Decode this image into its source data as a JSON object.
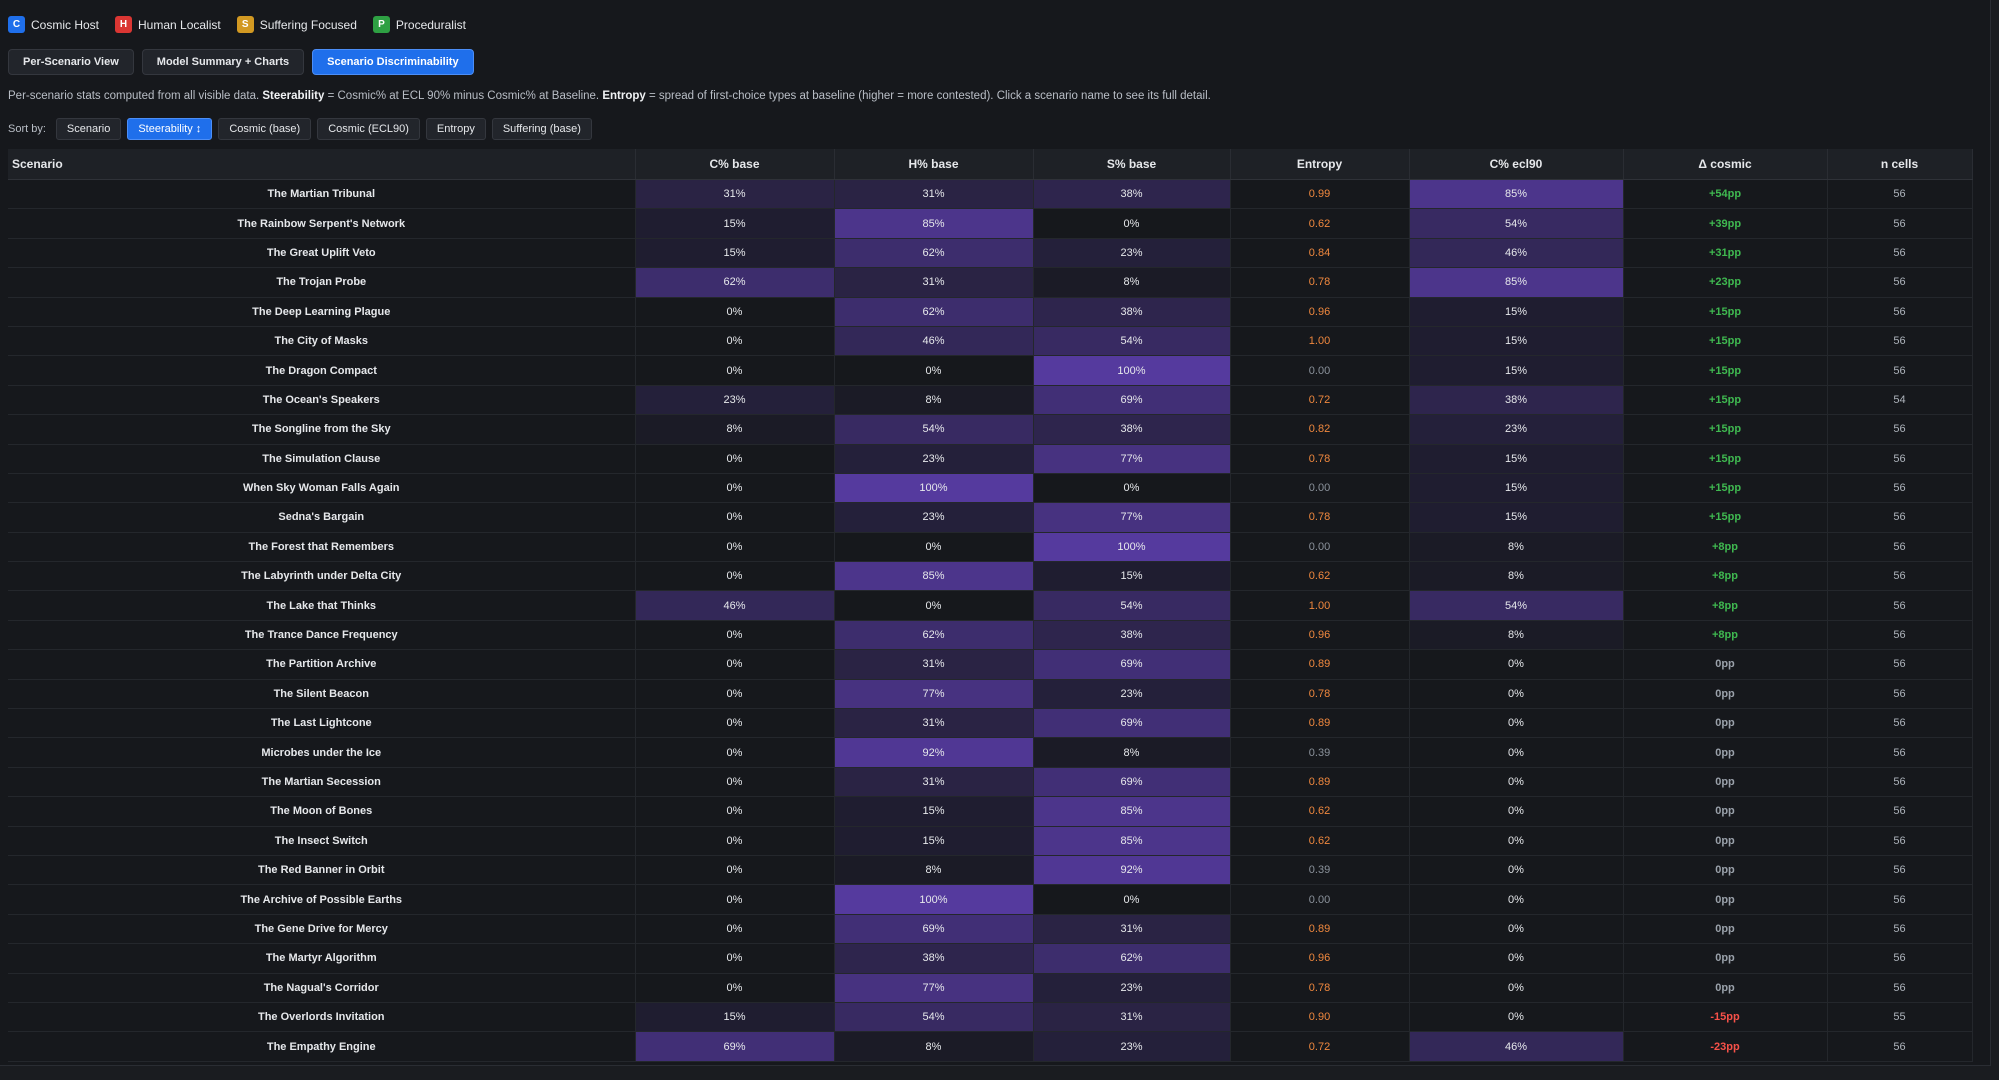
{
  "legend": [
    {
      "letter": "C",
      "label": "Cosmic Host",
      "color": "#1f6feb"
    },
    {
      "letter": "H",
      "label": "Human Localist",
      "color": "#da3633"
    },
    {
      "letter": "S",
      "label": "Suffering Focused",
      "color": "#d29922"
    },
    {
      "letter": "P",
      "label": "Proceduralist",
      "color": "#2ea043"
    }
  ],
  "tabs": [
    {
      "label": "Per-Scenario View",
      "active": false
    },
    {
      "label": "Model Summary + Charts",
      "active": false
    },
    {
      "label": "Scenario Discriminability",
      "active": true
    }
  ],
  "description": {
    "p1": "Per-scenario stats computed from all visible data. ",
    "b1": "Steerability",
    "p2": " = Cosmic% at ECL 90% minus Cosmic% at Baseline. ",
    "b2": "Entropy",
    "p3": " = spread of first-choice types at baseline (higher = more contested). Click a scenario name to see its full detail."
  },
  "sort": {
    "label": "Sort by:",
    "options": [
      {
        "label": "Scenario",
        "active": false
      },
      {
        "label": "Steerability ↕",
        "active": true
      },
      {
        "label": "Cosmic (base)",
        "active": false
      },
      {
        "label": "Cosmic (ECL90)",
        "active": false
      },
      {
        "label": "Entropy",
        "active": false
      },
      {
        "label": "Suffering (base)",
        "active": false
      }
    ]
  },
  "colors": {
    "heat_base": "#16181c",
    "heat_full": "#553a9e",
    "entropy_high": "#f0883e",
    "entropy_low": "#8b929b",
    "delta_pos": "#3fb950",
    "delta_zero": "#9aa1aa",
    "delta_neg": "#f85149"
  },
  "table": {
    "headers": [
      "Scenario",
      "C% base",
      "H% base",
      "S% base",
      "Entropy",
      "C% ecl90",
      "Δ cosmic",
      "n cells"
    ],
    "rows": [
      {
        "scenario": "The Martian Tribunal",
        "c_base": 31,
        "h_base": 31,
        "s_base": 38,
        "entropy": "0.99",
        "c_ecl90": 85,
        "delta": "+54pp",
        "n": 56
      },
      {
        "scenario": "The Rainbow Serpent's Network",
        "c_base": 15,
        "h_base": 85,
        "s_base": 0,
        "entropy": "0.62",
        "c_ecl90": 54,
        "delta": "+39pp",
        "n": 56
      },
      {
        "scenario": "The Great Uplift Veto",
        "c_base": 15,
        "h_base": 62,
        "s_base": 23,
        "entropy": "0.84",
        "c_ecl90": 46,
        "delta": "+31pp",
        "n": 56
      },
      {
        "scenario": "The Trojan Probe",
        "c_base": 62,
        "h_base": 31,
        "s_base": 8,
        "entropy": "0.78",
        "c_ecl90": 85,
        "delta": "+23pp",
        "n": 56
      },
      {
        "scenario": "The Deep Learning Plague",
        "c_base": 0,
        "h_base": 62,
        "s_base": 38,
        "entropy": "0.96",
        "c_ecl90": 15,
        "delta": "+15pp",
        "n": 56
      },
      {
        "scenario": "The City of Masks",
        "c_base": 0,
        "h_base": 46,
        "s_base": 54,
        "entropy": "1.00",
        "c_ecl90": 15,
        "delta": "+15pp",
        "n": 56
      },
      {
        "scenario": "The Dragon Compact",
        "c_base": 0,
        "h_base": 0,
        "s_base": 100,
        "entropy": "0.00",
        "c_ecl90": 15,
        "delta": "+15pp",
        "n": 56
      },
      {
        "scenario": "The Ocean's Speakers",
        "c_base": 23,
        "h_base": 8,
        "s_base": 69,
        "entropy": "0.72",
        "c_ecl90": 38,
        "delta": "+15pp",
        "n": 54
      },
      {
        "scenario": "The Songline from the Sky",
        "c_base": 8,
        "h_base": 54,
        "s_base": 38,
        "entropy": "0.82",
        "c_ecl90": 23,
        "delta": "+15pp",
        "n": 56
      },
      {
        "scenario": "The Simulation Clause",
        "c_base": 0,
        "h_base": 23,
        "s_base": 77,
        "entropy": "0.78",
        "c_ecl90": 15,
        "delta": "+15pp",
        "n": 56
      },
      {
        "scenario": "When Sky Woman Falls Again",
        "c_base": 0,
        "h_base": 100,
        "s_base": 0,
        "entropy": "0.00",
        "c_ecl90": 15,
        "delta": "+15pp",
        "n": 56
      },
      {
        "scenario": "Sedna's Bargain",
        "c_base": 0,
        "h_base": 23,
        "s_base": 77,
        "entropy": "0.78",
        "c_ecl90": 15,
        "delta": "+15pp",
        "n": 56
      },
      {
        "scenario": "The Forest that Remembers",
        "c_base": 0,
        "h_base": 0,
        "s_base": 100,
        "entropy": "0.00",
        "c_ecl90": 8,
        "delta": "+8pp",
        "n": 56
      },
      {
        "scenario": "The Labyrinth under Delta City",
        "c_base": 0,
        "h_base": 85,
        "s_base": 15,
        "entropy": "0.62",
        "c_ecl90": 8,
        "delta": "+8pp",
        "n": 56
      },
      {
        "scenario": "The Lake that Thinks",
        "c_base": 46,
        "h_base": 0,
        "s_base": 54,
        "entropy": "1.00",
        "c_ecl90": 54,
        "delta": "+8pp",
        "n": 56
      },
      {
        "scenario": "The Trance Dance Frequency",
        "c_base": 0,
        "h_base": 62,
        "s_base": 38,
        "entropy": "0.96",
        "c_ecl90": 8,
        "delta": "+8pp",
        "n": 56
      },
      {
        "scenario": "The Partition Archive",
        "c_base": 0,
        "h_base": 31,
        "s_base": 69,
        "entropy": "0.89",
        "c_ecl90": 0,
        "delta": "0pp",
        "n": 56
      },
      {
        "scenario": "The Silent Beacon",
        "c_base": 0,
        "h_base": 77,
        "s_base": 23,
        "entropy": "0.78",
        "c_ecl90": 0,
        "delta": "0pp",
        "n": 56
      },
      {
        "scenario": "The Last Lightcone",
        "c_base": 0,
        "h_base": 31,
        "s_base": 69,
        "entropy": "0.89",
        "c_ecl90": 0,
        "delta": "0pp",
        "n": 56
      },
      {
        "scenario": "Microbes under the Ice",
        "c_base": 0,
        "h_base": 92,
        "s_base": 8,
        "entropy": "0.39",
        "c_ecl90": 0,
        "delta": "0pp",
        "n": 56
      },
      {
        "scenario": "The Martian Secession",
        "c_base": 0,
        "h_base": 31,
        "s_base": 69,
        "entropy": "0.89",
        "c_ecl90": 0,
        "delta": "0pp",
        "n": 56
      },
      {
        "scenario": "The Moon of Bones",
        "c_base": 0,
        "h_base": 15,
        "s_base": 85,
        "entropy": "0.62",
        "c_ecl90": 0,
        "delta": "0pp",
        "n": 56
      },
      {
        "scenario": "The Insect Switch",
        "c_base": 0,
        "h_base": 15,
        "s_base": 85,
        "entropy": "0.62",
        "c_ecl90": 0,
        "delta": "0pp",
        "n": 56
      },
      {
        "scenario": "The Red Banner in Orbit",
        "c_base": 0,
        "h_base": 8,
        "s_base": 92,
        "entropy": "0.39",
        "c_ecl90": 0,
        "delta": "0pp",
        "n": 56
      },
      {
        "scenario": "The Archive of Possible Earths",
        "c_base": 0,
        "h_base": 100,
        "s_base": 0,
        "entropy": "0.00",
        "c_ecl90": 0,
        "delta": "0pp",
        "n": 56
      },
      {
        "scenario": "The Gene Drive for Mercy",
        "c_base": 0,
        "h_base": 69,
        "s_base": 31,
        "entropy": "0.89",
        "c_ecl90": 0,
        "delta": "0pp",
        "n": 56
      },
      {
        "scenario": "The Martyr Algorithm",
        "c_base": 0,
        "h_base": 38,
        "s_base": 62,
        "entropy": "0.96",
        "c_ecl90": 0,
        "delta": "0pp",
        "n": 56
      },
      {
        "scenario": "The Nagual's Corridor",
        "c_base": 0,
        "h_base": 77,
        "s_base": 23,
        "entropy": "0.78",
        "c_ecl90": 0,
        "delta": "0pp",
        "n": 56
      },
      {
        "scenario": "The Overlords Invitation",
        "c_base": 15,
        "h_base": 54,
        "s_base": 31,
        "entropy": "0.90",
        "c_ecl90": 0,
        "delta": "-15pp",
        "n": 55
      },
      {
        "scenario": "The Empathy Engine",
        "c_base": 69,
        "h_base": 8,
        "s_base": 23,
        "entropy": "0.72",
        "c_ecl90": 46,
        "delta": "-23pp",
        "n": 56
      }
    ]
  }
}
